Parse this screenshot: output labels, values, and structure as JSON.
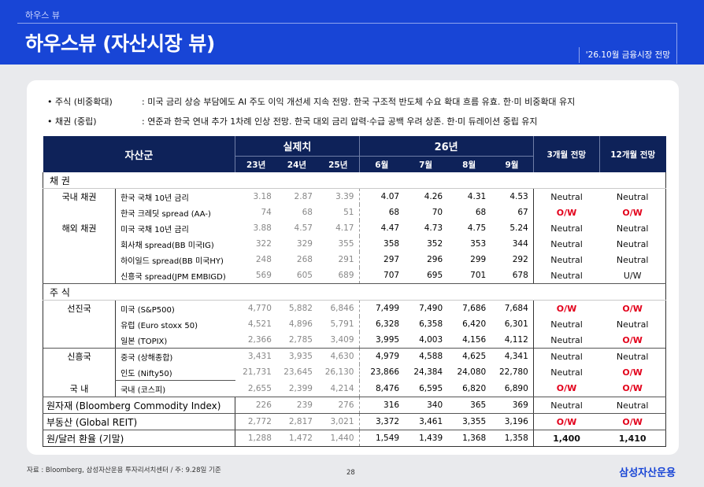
{
  "header": {
    "breadcrumb": "하우스 뷰",
    "title": "하우스뷰 (자산시장 뷰)",
    "date_badge": "'26.10월 금융시장 전망"
  },
  "bullets": [
    {
      "key": "• 주식 (비중확대)",
      "value": ": 미국 금리 상승 부담에도 AI 주도 이익 개선세 지속 전망. 한국 구조적 반도체 수요 확대 흐름 유효. 한·미 비중확대 유지"
    },
    {
      "key": "• 채권 (중립)",
      "value": ": 연준과 한국 연내 추가 1차례 인상 전망. 한국 대외 금리 압력·수급 공백 우려 상존. 한·미 듀레이션 중립 유지"
    }
  ],
  "table": {
    "h_asset": "자산군",
    "h_actual": "실제치",
    "h_26": "26년",
    "h_3m": "3개월 전망",
    "h_12m": "12개월 전망",
    "cols": [
      "23년",
      "24년",
      "25년",
      "6월",
      "7월",
      "8월",
      "9월"
    ],
    "sec_bond": "채    권",
    "sec_equity": "주    식",
    "cat_domestic_bond": "국내 채권",
    "cat_foreign_bond": "해외 채권",
    "cat_dev": "선진국",
    "cat_em": "신흥국",
    "cat_kr": "국    내",
    "rows": [
      {
        "item": "한국 국채 10년 금리",
        "v": [
          "3.18",
          "2.87",
          "3.39",
          "4.07",
          "4.26",
          "4.31",
          "4.53"
        ],
        "m3": "Neutral",
        "m12": "Neutral"
      },
      {
        "item": "한국 크레딧 spread (AA-)",
        "v": [
          "74",
          "68",
          "51",
          "68",
          "70",
          "68",
          "67"
        ],
        "m3": "O/W",
        "m12": "O/W"
      },
      {
        "item": "미국 국채 10년 금리",
        "v": [
          "3.88",
          "4.57",
          "4.17",
          "4.47",
          "4.73",
          "4.75",
          "5.24"
        ],
        "m3": "Neutral",
        "m12": "Neutral"
      },
      {
        "item": "회사채 spread(BB 미국IG)",
        "v": [
          "322",
          "329",
          "355",
          "358",
          "352",
          "353",
          "344"
        ],
        "m3": "Neutral",
        "m12": "Neutral"
      },
      {
        "item": "하이일드 spread(BB 미국HY)",
        "v": [
          "248",
          "268",
          "291",
          "297",
          "296",
          "299",
          "292"
        ],
        "m3": "Neutral",
        "m12": "Neutral"
      },
      {
        "item": "신흥국 spread(JPM EMBIGD)",
        "v": [
          "569",
          "605",
          "689",
          "707",
          "695",
          "701",
          "678"
        ],
        "m3": "Neutral",
        "m12": "U/W"
      },
      {
        "item": "미국 (S&P500)",
        "v": [
          "4,770",
          "5,882",
          "6,846",
          "7,499",
          "7,490",
          "7,686",
          "7,684"
        ],
        "m3": "O/W",
        "m12": "O/W"
      },
      {
        "item": "유럽 (Euro stoxx 50)",
        "v": [
          "4,521",
          "4,896",
          "5,791",
          "6,328",
          "6,358",
          "6,420",
          "6,301"
        ],
        "m3": "Neutral",
        "m12": "Neutral"
      },
      {
        "item": "일본 (TOPIX)",
        "v": [
          "2,366",
          "2,785",
          "3,409",
          "3,995",
          "4,003",
          "4,156",
          "4,112"
        ],
        "m3": "Neutral",
        "m12": "O/W"
      },
      {
        "item": "중국 (상해종합)",
        "v": [
          "3,431",
          "3,935",
          "4,630",
          "4,979",
          "4,588",
          "4,625",
          "4,341"
        ],
        "m3": "Neutral",
        "m12": "Neutral"
      },
      {
        "item": "인도 (Nifty50)",
        "v": [
          "21,731",
          "23,645",
          "26,130",
          "23,866",
          "24,384",
          "24,080",
          "22,780"
        ],
        "m3": "Neutral",
        "m12": "O/W"
      },
      {
        "item": "국내 (코스피)",
        "v": [
          "2,655",
          "2,399",
          "4,214",
          "8,476",
          "6,595",
          "6,820",
          "6,890"
        ],
        "m3": "O/W",
        "m12": "O/W"
      },
      {
        "item": "원자재 (Bloomberg Commodity Index)",
        "v": [
          "226",
          "239",
          "276",
          "316",
          "340",
          "365",
          "369"
        ],
        "m3": "Neutral",
        "m12": "Neutral"
      },
      {
        "item": "부동산 (Global REIT)",
        "v": [
          "2,772",
          "2,817",
          "3,021",
          "3,372",
          "3,461",
          "3,355",
          "3,196"
        ],
        "m3": "O/W",
        "m12": "O/W"
      },
      {
        "item": "원/달러 환율 (기말)",
        "v": [
          "1,288",
          "1,472",
          "1,440",
          "1,549",
          "1,439",
          "1,368",
          "1,358"
        ],
        "m3": "1,400",
        "m12": "1,410"
      }
    ]
  },
  "colors": {
    "header_blue": "#1845d6",
    "table_header_navy": "#0e2259",
    "overweight_red": "#e3001b"
  },
  "footer": {
    "source": "자료 : Bloomberg, 삼성자산운용 투자리서치센터 / 주: 9.28일 기준",
    "page": "28",
    "logo": "삼성자산운용"
  }
}
